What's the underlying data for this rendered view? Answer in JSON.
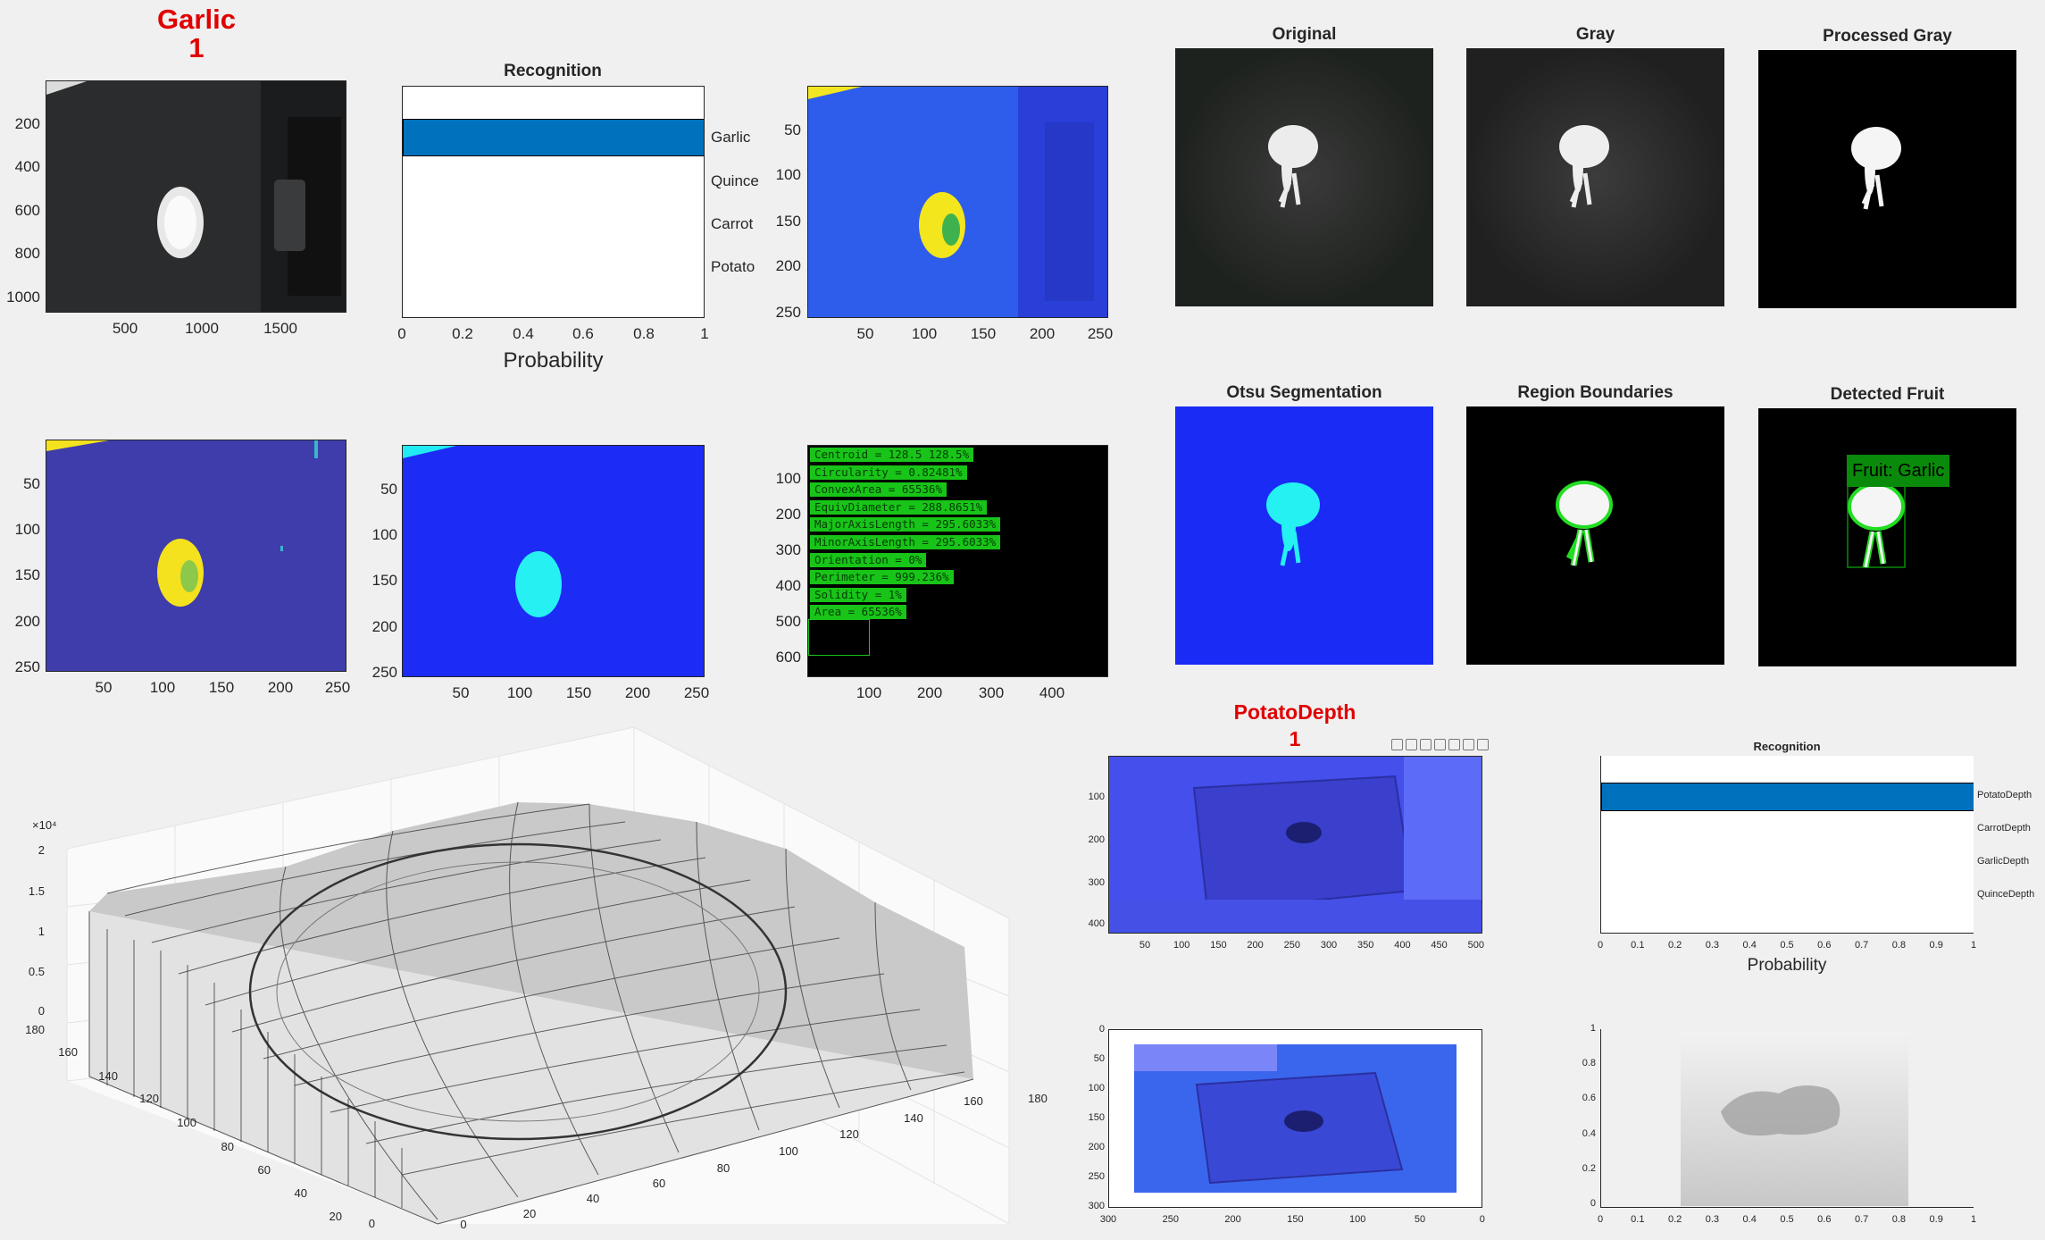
{
  "garlic_panel": {
    "title": "Garlic",
    "count": "1"
  },
  "photo_axes": {
    "x_ticks": [
      "500",
      "1000",
      "1500"
    ],
    "y_ticks": [
      "200",
      "400",
      "600",
      "800",
      "1000"
    ]
  },
  "recognition": {
    "title": "Recognition",
    "classes": [
      "Garlic",
      "Quince",
      "Carrot",
      "Potato"
    ],
    "x_ticks": [
      "0",
      "0.2",
      "0.4",
      "0.6",
      "0.8",
      "1"
    ],
    "xlabel": "Probability"
  },
  "colormap_axes": {
    "x_ticks": [
      "50",
      "100",
      "150",
      "200",
      "250"
    ],
    "y_ticks": [
      "50",
      "100",
      "150",
      "200",
      "250"
    ]
  },
  "feature_axes": {
    "x_ticks": [
      "100",
      "200",
      "300",
      "400"
    ],
    "y_ticks": [
      "100",
      "200",
      "300",
      "400",
      "500",
      "600"
    ],
    "features": [
      "Centroid = 128.5          128.5%",
      "Circularity = 0.82481%",
      "ConvexArea = 65536%",
      "EquivDiameter = 288.8651%",
      "MajorAxisLength = 295.6033%",
      "MinorAxisLength = 295.6033%",
      "Orientation = 0%",
      "Perimeter = 999.236%",
      "Solidity = 1%",
      "Area = 65536%"
    ]
  },
  "stage_titles": [
    "Original",
    "Gray",
    "Processed Gray",
    "Otsu Segmentation",
    "Region Boundaries",
    "Detected Fruit"
  ],
  "detected_label": "Fruit: Garlic",
  "mesh_axes": {
    "z_exponent": "×10⁴",
    "z_ticks": [
      "2",
      "1.5",
      "1",
      "0.5",
      "0"
    ],
    "y_ticks": [
      "180",
      "160",
      "140",
      "120",
      "100",
      "80",
      "60",
      "40",
      "20",
      "0"
    ],
    "x_ticks": [
      "0",
      "20",
      "40",
      "60",
      "80",
      "100",
      "120",
      "140",
      "160",
      "180"
    ]
  },
  "potato_panel": {
    "title": "PotatoDepth",
    "count": "1"
  },
  "depth_axes": {
    "x_ticks": [
      "50",
      "100",
      "150",
      "200",
      "250",
      "300",
      "350",
      "400",
      "450",
      "500"
    ],
    "y_ticks": [
      "100",
      "200",
      "300",
      "400"
    ]
  },
  "recognition_depth": {
    "title": "Recognition",
    "classes": [
      "PotatoDepth",
      "CarrotDepth",
      "GarlicDepth",
      "QuinceDepth"
    ],
    "x_ticks": [
      "0",
      "0.1",
      "0.2",
      "0.3",
      "0.4",
      "0.5",
      "0.6",
      "0.7",
      "0.8",
      "0.9",
      "1"
    ],
    "xlabel": "Probability"
  },
  "flipped_axes": {
    "y_ticks": [
      "0",
      "50",
      "100",
      "150",
      "200",
      "250",
      "300"
    ],
    "x_ticks": [
      "300",
      "250",
      "200",
      "150",
      "100",
      "50",
      "0"
    ]
  },
  "gray_depth_axes": {
    "y_ticks": [
      "1",
      "0.8",
      "0.6",
      "0.4",
      "0.2",
      "0"
    ],
    "x_ticks": [
      "0",
      "0.1",
      "0.2",
      "0.3",
      "0.4",
      "0.5",
      "0.6",
      "0.7",
      "0.8",
      "0.9",
      "1"
    ]
  },
  "colors": {
    "title_red": "#e00000",
    "bar_blue": "#0072bd",
    "feature_green": "#18c418",
    "boundary_green": "#22dd22",
    "label_green": "#0a8a0a"
  }
}
